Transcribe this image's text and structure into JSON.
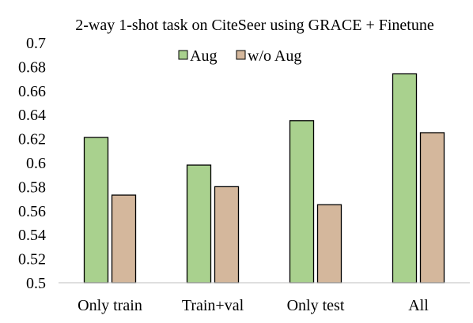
{
  "chart_data": {
    "type": "bar",
    "title": "2-way 1-shot task on CiteSeer using GRACE + Finetune",
    "xlabel": "",
    "ylabel": "",
    "categories": [
      "Only train",
      "Train+val",
      "Only test",
      "All"
    ],
    "series": [
      {
        "name": "Aug",
        "values": [
          0.621,
          0.598,
          0.635,
          0.674
        ],
        "color": "#a9d18e"
      },
      {
        "name": "w/o Aug",
        "values": [
          0.573,
          0.58,
          0.565,
          0.625
        ],
        "color": "#d4b79c"
      }
    ],
    "ylim": [
      0.5,
      0.7
    ],
    "yticks": [
      "0.5",
      "0.52",
      "0.54",
      "0.56",
      "0.58",
      "0.6",
      "0.62",
      "0.64",
      "0.66",
      "0.68",
      "0.7"
    ],
    "grid": false,
    "legend_position": "top-center",
    "bar_outline_color": "#000000"
  }
}
